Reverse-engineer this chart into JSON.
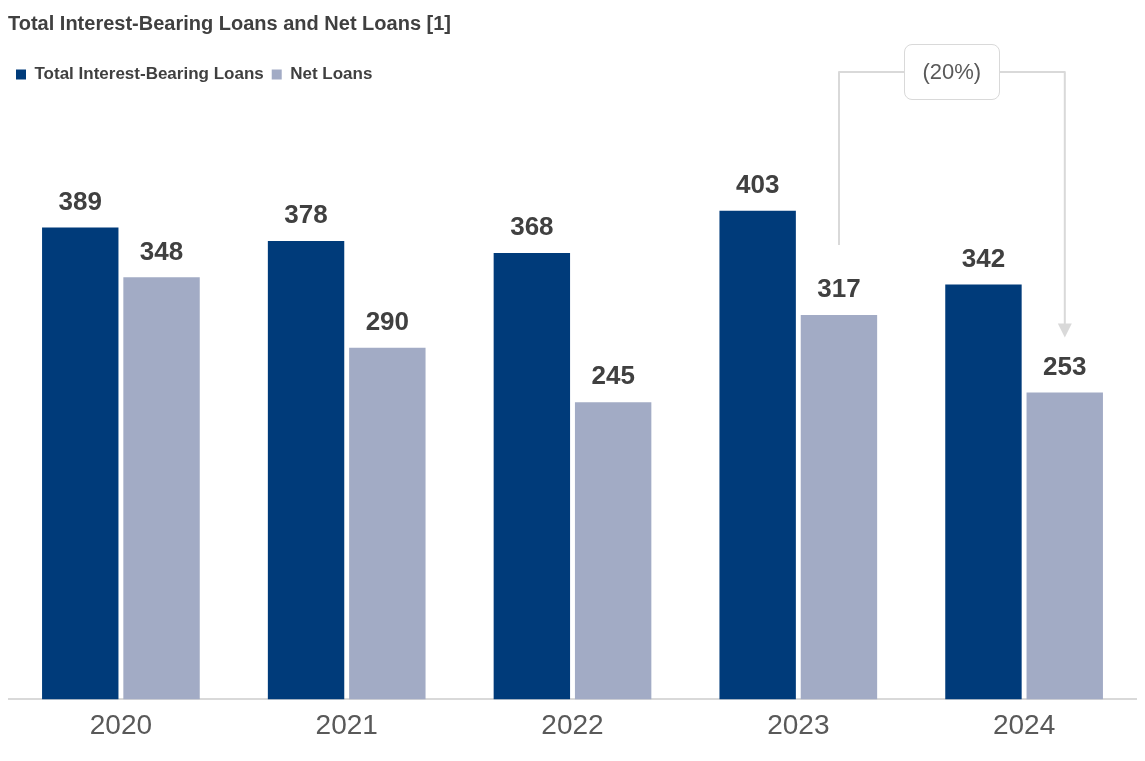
{
  "chart_data": {
    "type": "bar",
    "title": "Total Interest-Bearing Loans and Net Loans [1]",
    "categories": [
      "2020",
      "2021",
      "2022",
      "2023",
      "2024"
    ],
    "series": [
      {
        "name": "Total Interest-Bearing Loans",
        "color": "#003b7a",
        "values": [
          389,
          378,
          368,
          403,
          342
        ]
      },
      {
        "name": "Net Loans",
        "color": "#a2abc5",
        "values": [
          348,
          290,
          245,
          317,
          253
        ]
      }
    ],
    "tick_labels": "x",
    "data_labels": true,
    "legend": "top left",
    "grid": false,
    "annotations": [
      "(20%)"
    ]
  }
}
